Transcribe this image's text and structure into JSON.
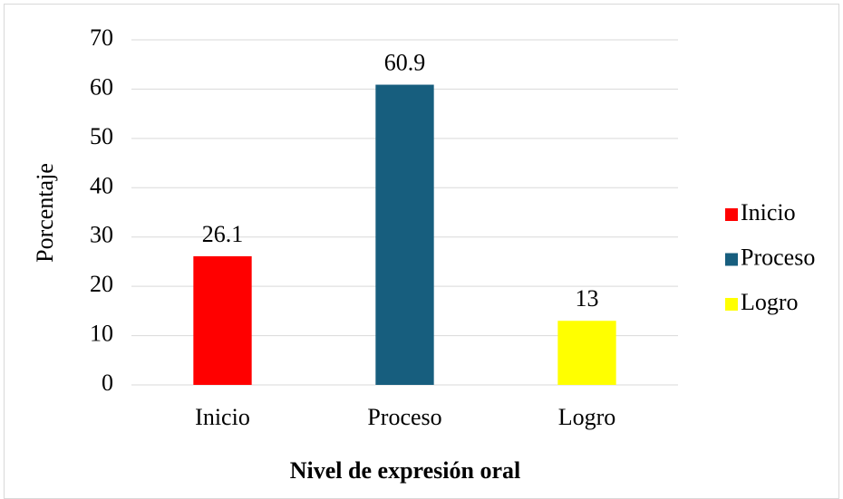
{
  "chart_data": {
    "type": "bar",
    "categories": [
      "Inicio",
      "Proceso",
      "Logro"
    ],
    "values": [
      26.1,
      60.9,
      13
    ],
    "colors": [
      "#ff0000",
      "#175e7e",
      "#ffff00"
    ],
    "ylim": [
      0,
      70
    ],
    "yticks": [
      0,
      10,
      20,
      30,
      40,
      50,
      60,
      70
    ],
    "ylabel": "Porcentaje",
    "xlabel": "Nivel de expresión oral",
    "grid": true,
    "legend": "right"
  }
}
